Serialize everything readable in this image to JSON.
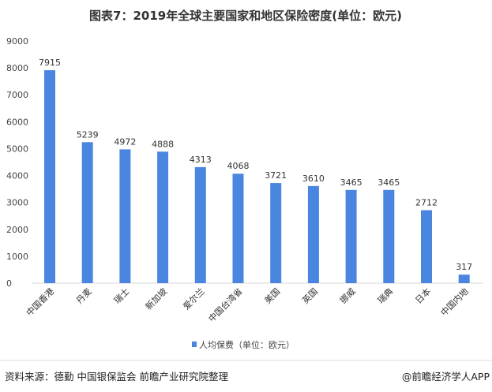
{
  "chart_data": {
    "type": "bar",
    "title": "图表7：2019年全球主要国家和地区保险密度(单位：欧元)",
    "categories": [
      "中国香港",
      "丹麦",
      "瑞士",
      "新加坡",
      "爱尔兰",
      "中国台湾省",
      "美国",
      "英国",
      "挪威",
      "瑞典",
      "日本",
      "中国内地"
    ],
    "series": [
      {
        "name": "人均保费（单位：欧元）",
        "values": [
          7915,
          5239,
          4972,
          4888,
          4313,
          4068,
          3721,
          3610,
          3465,
          3465,
          2712,
          317
        ],
        "color": "#4a86e0"
      }
    ],
    "ylim": [
      0,
      9000
    ],
    "yticks": [
      0,
      1000,
      2000,
      3000,
      4000,
      5000,
      6000,
      7000,
      8000,
      9000
    ],
    "xlabel": "",
    "ylabel": "",
    "grid": false,
    "legend": "bottom"
  },
  "footer": {
    "source": "资料来源：德勤 中国银保监会 前瞻产业研究院整理",
    "credit": "@前瞻经济学人APP"
  }
}
